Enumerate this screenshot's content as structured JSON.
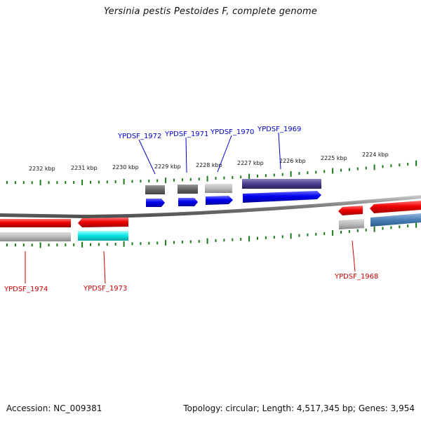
{
  "title": "Yersinia pestis Pestoides F, complete genome",
  "footer": {
    "accession": "Accession: NC_009381",
    "stats": "Topology: circular; Length: 4,517,345 bp; Genes: 3,954"
  },
  "scale_labels": [
    "2232 kbp",
    "2231 kbp",
    "2230 kbp",
    "2229 kbp",
    "2228 kbp",
    "2227 kbp",
    "2226 kbp",
    "2225 kbp",
    "2224 kbp"
  ],
  "gene_labels": {
    "forward": [
      "YPDSF_1972",
      "YPDSF_1971",
      "YPDSF_1970",
      "YPDSF_1969"
    ],
    "reverse": [
      "YPDSF_1974",
      "YPDSF_1973",
      "YPDSF_1968"
    ]
  },
  "colors": {
    "forward_label": "#0000cc",
    "reverse_label": "#cc0000",
    "forward_cds": "#0000ee",
    "reverse_cds": "#ee0000",
    "tick": "#1a7a1a",
    "backbone": "#808080"
  }
}
